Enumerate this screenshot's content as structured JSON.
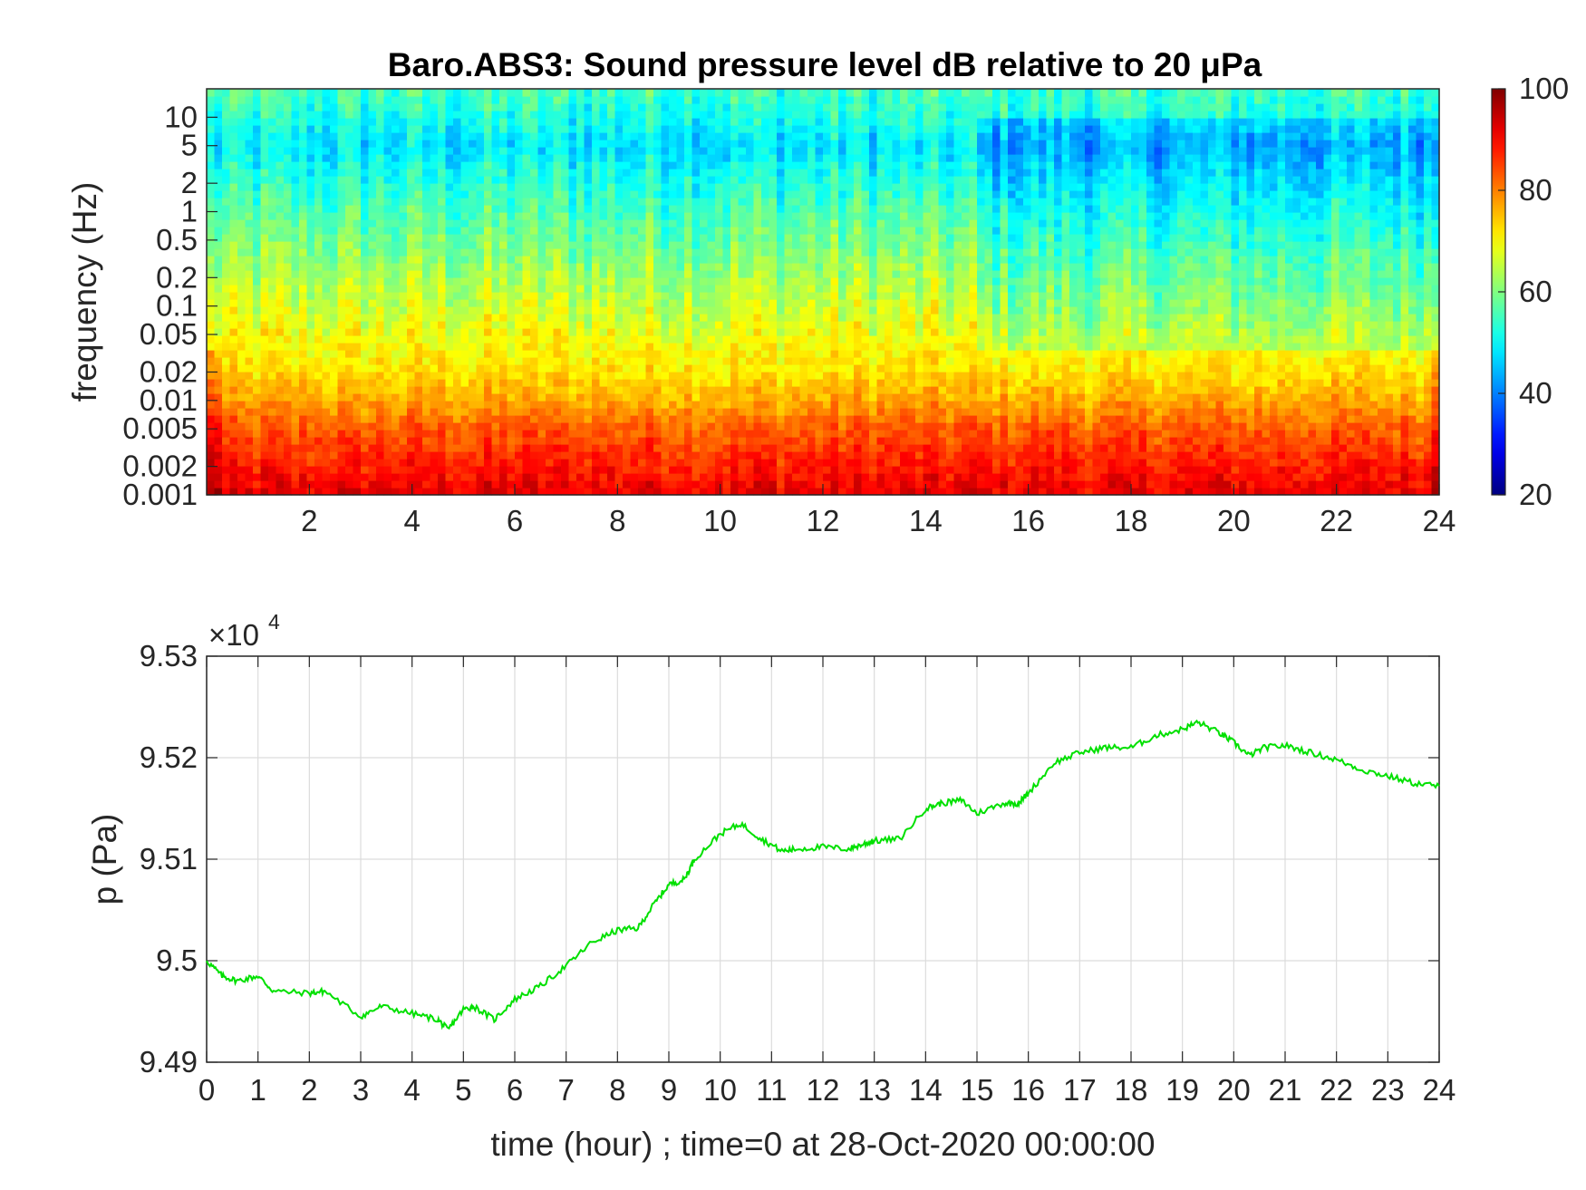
{
  "figure": {
    "background": "#ffffff",
    "axis_color": "#262626"
  },
  "chart_data": [
    {
      "type": "heatmap",
      "title": "Baro.ABS3: Sound pressure level dB relative to 20 μPa",
      "xlabel": "",
      "ylabel": "frequency (Hz)",
      "x_unit": "hour",
      "xlim": [
        0,
        24
      ],
      "xticks": [
        2,
        4,
        6,
        8,
        10,
        12,
        14,
        16,
        18,
        20,
        22,
        24
      ],
      "yscale": "log",
      "ylim": [
        0.001,
        20
      ],
      "yticks": [
        0.001,
        0.002,
        0.005,
        0.01,
        0.02,
        0.05,
        0.1,
        0.2,
        0.5,
        1,
        2,
        5,
        10
      ],
      "ytick_labels": [
        "0.001",
        "0.002",
        "0.005",
        "0.01",
        "0.02",
        "0.05",
        "0.1",
        "0.2",
        "0.5",
        "1",
        "2",
        "5",
        "10"
      ],
      "colorbar": {
        "colormap": "jet",
        "clim": [
          20,
          100
        ],
        "ticks": [
          20,
          40,
          60,
          80,
          100
        ],
        "placement": "right"
      },
      "level_profile_db": {
        "frequency_hz": [
          0.001,
          0.002,
          0.005,
          0.01,
          0.02,
          0.05,
          0.1,
          0.2,
          0.5,
          1,
          2,
          5,
          10,
          20
        ],
        "level_db": [
          92,
          88,
          83,
          77,
          72,
          69,
          66,
          63,
          59,
          56,
          53,
          48,
          52,
          55
        ]
      },
      "grid": false
    },
    {
      "type": "line",
      "title": "",
      "xlabel": "time (hour) ; time=0 at 28-Oct-2020 00:00:00",
      "ylabel": "p (Pa)",
      "y_multiplier_label": "×10",
      "y_multiplier_exponent": "4",
      "xlim": [
        0,
        24
      ],
      "xticks": [
        0,
        1,
        2,
        3,
        4,
        5,
        6,
        7,
        8,
        9,
        10,
        11,
        12,
        13,
        14,
        15,
        16,
        17,
        18,
        19,
        20,
        21,
        22,
        23,
        24
      ],
      "ylim": [
        9.49,
        9.53
      ],
      "yticks": [
        9.49,
        9.5,
        9.51,
        9.52,
        9.53
      ],
      "ytick_labels": [
        "9.49",
        "9.5",
        "9.51",
        "9.52",
        "9.53"
      ],
      "grid": true,
      "series": [
        {
          "color": "#00e000",
          "x": [
            0,
            0.3,
            0.6,
            1.0,
            1.3,
            2.0,
            2.3,
            3.0,
            3.4,
            4.0,
            4.5,
            4.7,
            5.0,
            5.2,
            5.6,
            6.0,
            6.5,
            7.0,
            7.5,
            8.0,
            8.4,
            8.7,
            9.0,
            9.3,
            9.5,
            10.0,
            10.4,
            10.8,
            11.2,
            11.5,
            12.0,
            12.5,
            12.8,
            13.0,
            13.5,
            14.0,
            14.3,
            14.7,
            15.0,
            15.5,
            15.8,
            16.0,
            16.5,
            17.0,
            17.5,
            18.0,
            18.5,
            19.0,
            19.3,
            19.7,
            20.0,
            20.3,
            20.6,
            21.0,
            21.5,
            22.0,
            22.5,
            23.0,
            23.5,
            24.0
          ],
          "y": [
            9.5,
            9.4985,
            9.498,
            9.4985,
            9.497,
            9.4968,
            9.497,
            9.4945,
            9.4955,
            9.4948,
            9.4942,
            9.4932,
            9.4952,
            9.4955,
            9.4942,
            9.4962,
            9.4975,
            9.4995,
            9.5018,
            9.503,
            9.5032,
            9.5055,
            9.5075,
            9.508,
            9.51,
            9.5125,
            9.5135,
            9.512,
            9.5108,
            9.511,
            9.5112,
            9.511,
            9.5115,
            9.5118,
            9.512,
            9.515,
            9.5155,
            9.5158,
            9.5145,
            9.5155,
            9.5155,
            9.5165,
            9.5195,
            9.5205,
            9.521,
            9.521,
            9.5222,
            9.5228,
            9.5235,
            9.5225,
            9.5215,
            9.5202,
            9.521,
            9.5212,
            9.5205,
            9.5198,
            9.5188,
            9.5182,
            9.5175,
            9.5172
          ]
        }
      ]
    }
  ]
}
